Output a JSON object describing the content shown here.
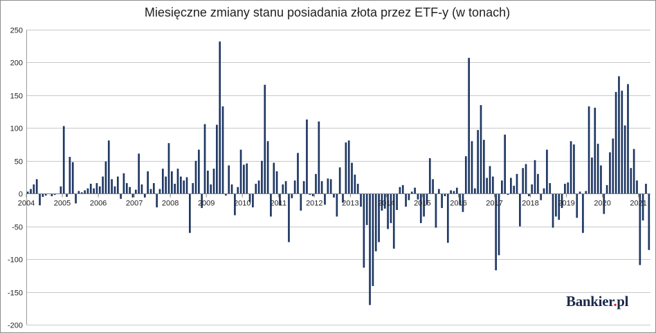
{
  "chart_data": {
    "type": "bar",
    "title": "Miesięczne zmiany stanu posiadania złota przez ETF-y (w tonach)",
    "xlabel": "",
    "ylabel": "",
    "ylim": [
      -200,
      250
    ],
    "yticks": [
      250,
      200,
      150,
      100,
      50,
      0,
      -50,
      -100,
      -150,
      -200
    ],
    "xticks": [
      "2004",
      "2005",
      "2006",
      "2007",
      "2008",
      "2009",
      "2010",
      "2011",
      "2012",
      "2013",
      "2014",
      "2015",
      "2016",
      "2017",
      "2018",
      "2019",
      "2020",
      "2021"
    ],
    "grid": "horizontal",
    "bar_color": "#1f3864",
    "start_period": "2004-01",
    "values": [
      3,
      7,
      14,
      22,
      -18,
      -5,
      -3,
      0,
      -4,
      -2,
      0,
      11,
      103,
      -5,
      56,
      48,
      -15,
      4,
      2,
      5,
      8,
      15,
      8,
      16,
      11,
      26,
      49,
      81,
      22,
      11,
      26,
      -8,
      31,
      16,
      10,
      -6,
      6,
      61,
      14,
      -6,
      34,
      7,
      16,
      -21,
      7,
      38,
      26,
      77,
      34,
      15,
      38,
      26,
      20,
      25,
      -60,
      16,
      50,
      67,
      -22,
      106,
      35,
      14,
      38,
      105,
      232,
      133,
      -3,
      43,
      14,
      -33,
      10,
      67,
      44,
      46,
      -13,
      -21,
      15,
      20,
      50,
      166,
      80,
      -35,
      47,
      34,
      -18,
      14,
      19,
      -74,
      -7,
      20,
      62,
      -26,
      19,
      113,
      -2,
      -4,
      30,
      110,
      19,
      -17,
      23,
      22,
      -6,
      -35,
      40,
      -14,
      78,
      81,
      47,
      29,
      15,
      -20,
      -113,
      -48,
      -170,
      -141,
      -88,
      -74,
      -26,
      -23,
      -54,
      -45,
      -84,
      -25,
      10,
      13,
      -20,
      -10,
      3,
      9,
      -9,
      -45,
      -35,
      -17,
      54,
      22,
      -52,
      7,
      -22,
      -4,
      -75,
      5,
      4,
      9,
      -17,
      -28,
      57,
      207,
      80,
      8,
      97,
      135,
      82,
      24,
      42,
      26,
      -117,
      -94,
      20,
      90,
      -2,
      24,
      12,
      30,
      -50,
      39,
      45,
      -4,
      14,
      51,
      30,
      -10,
      8,
      67,
      16,
      -52,
      -35,
      -40,
      -22,
      15,
      17,
      80,
      75,
      -37,
      3,
      -60,
      4,
      133,
      55,
      131,
      76,
      43,
      -31,
      13,
      63,
      84,
      155,
      179,
      157,
      104,
      167,
      39,
      68,
      20,
      -109,
      -41,
      15,
      -86
    ]
  },
  "watermark": {
    "brand": "Bankier",
    "dot": ".",
    "tld": "pl"
  }
}
